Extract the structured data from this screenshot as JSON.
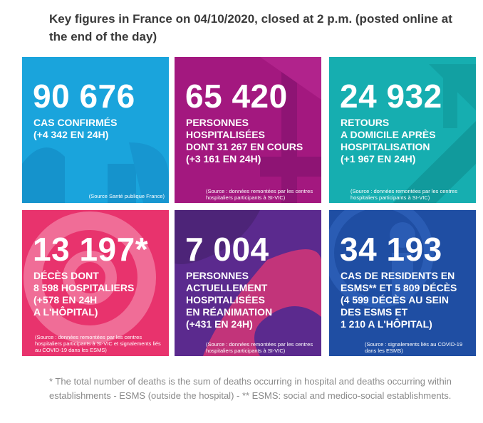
{
  "header": {
    "title": "Key figures in France on 04/10/2020, closed at 2 p.m. (posted online at the end of the day)"
  },
  "cards": [
    {
      "value": "90 676",
      "lines": [
        "CAS CONFIRMÉS",
        "(+4 342 EN 24H)"
      ],
      "source": "(Source Santé publique France)",
      "color": "#1aa4dc"
    },
    {
      "value": "65 420",
      "lines": [
        "PERSONNES",
        "HOSPITALISÉES",
        "DONT 31 267 EN COURS",
        "(+3 161 EN 24H)"
      ],
      "source": "(Source : données remontées par les centres hospitaliers participants à SI-VIC)",
      "color": "#a3187f"
    },
    {
      "value": "24 932",
      "lines": [
        "RETOURS",
        "A DOMICILE APRÈS",
        "HOSPITALISATION",
        "(+1 967 EN 24H)"
      ],
      "source": "(Source : données remontées par les centres hospitaliers participants à SI-VIC)",
      "color": "#16aeb0"
    },
    {
      "value": "13 197*",
      "lines": [
        "DÉCÈS DONT",
        "8 598 HOSPITALIERS",
        "(+578 EN 24H",
        "A L'HÔPITAL)"
      ],
      "source": "(Source : données remontées par les centres hospitaliers participants à SI-VIC et signalements liés au COVID-19 dans les ESMS)",
      "color": "#e8336d"
    },
    {
      "value": "7 004",
      "lines": [
        "PERSONNES",
        "ACTUELLEMENT",
        "HOSPITALISÉES",
        "EN RÉANIMATION",
        "(+431 EN 24H)"
      ],
      "source": "(Source : données remontées par les centres hospitaliers participants à SI-VIC)",
      "color": "#5b2a8e"
    },
    {
      "value": "34 193",
      "lines": [
        "CAS DE RESIDENTS EN",
        "ESMS** ET 5 809 DÉCÈS",
        "(4 599 DÉCÈS AU SEIN",
        "DES ESMS ET",
        "1 210 A L'HÔPITAL)"
      ],
      "source": "(Source : signalements liés au COVID-19 dans les ESMS)",
      "color": "#1f4ea3"
    }
  ],
  "footnote": "* The total number of deaths is the sum of deaths occurring in hospital and deaths occurring within establishments - ESMS (outside the hospital) - ** ESMS: social and medico-social establishments."
}
